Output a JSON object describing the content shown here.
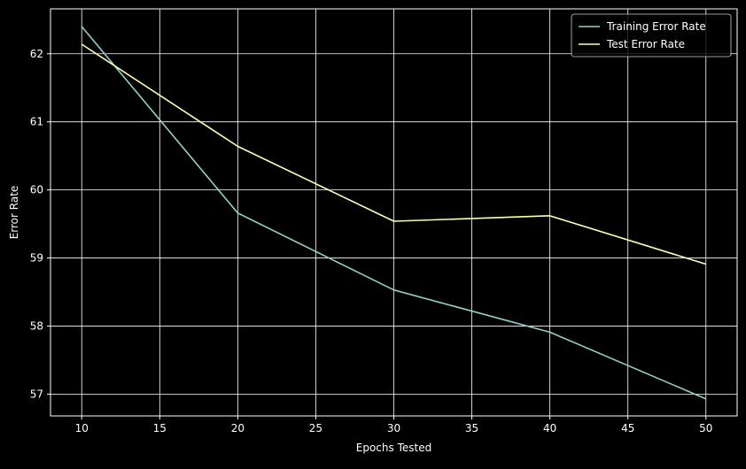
{
  "chart_data": {
    "type": "line",
    "title": "",
    "xlabel": "Epochs Tested",
    "ylabel": "Error Rate",
    "x": [
      10,
      20,
      30,
      40,
      50
    ],
    "xticks": [
      10,
      15,
      20,
      25,
      30,
      35,
      40,
      45,
      50
    ],
    "yticks": [
      57,
      58,
      59,
      60,
      61,
      62
    ],
    "xlim": [
      8,
      52
    ],
    "ylim": [
      56.68,
      62.66
    ],
    "grid": true,
    "legend_position": "upper-right",
    "series": [
      {
        "name": "Training Error Rate",
        "color": "#8dd3c7",
        "values": [
          62.4,
          59.66,
          58.53,
          57.91,
          56.93
        ]
      },
      {
        "name": "Test Error Rate",
        "color": "#ffffb3",
        "values": [
          62.14,
          60.64,
          59.54,
          59.62,
          58.91
        ]
      }
    ],
    "colors": {
      "background": "#000000",
      "axes": "#ffffff",
      "grid": "#ffffff",
      "text": "#ffffff"
    }
  }
}
